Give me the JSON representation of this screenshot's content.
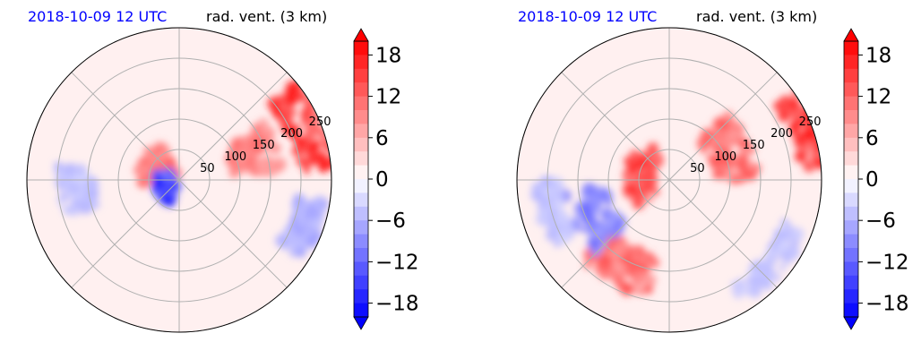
{
  "chart_data": [
    {
      "type": "heatmap",
      "projection": "polar",
      "title_left": "2018-10-09 12 UTC",
      "title_right": "rad. vent. (3 km)",
      "radial_ticks": [
        50,
        100,
        150,
        200,
        250
      ],
      "radial_max": 250,
      "angular_gridlines_deg": [
        0,
        45,
        90,
        135,
        180,
        225,
        270,
        315
      ],
      "colorbar": {
        "min": -20,
        "max": 20,
        "step": 2,
        "ticks": [
          -18,
          -12,
          -6,
          0,
          6,
          12,
          18
        ],
        "tick_labels": [
          "−18",
          "−12",
          "−6",
          "0",
          "6",
          "12",
          "18"
        ],
        "extend": "both",
        "colormap": "bwr",
        "low_color": "#0000ff",
        "zero_color": "#ffffff",
        "high_color": "#ff0000"
      },
      "features": [
        {
          "kind": "positive",
          "r": 40,
          "theta": 150,
          "spread_r": 30,
          "spread_theta": 40,
          "value": 14
        },
        {
          "kind": "positive",
          "r": 130,
          "theta": 20,
          "spread_r": 40,
          "spread_theta": 15,
          "value": 12
        },
        {
          "kind": "positive",
          "r": 230,
          "theta": 22,
          "spread_r": 35,
          "spread_theta": 18,
          "value": 20
        },
        {
          "kind": "negative",
          "r": 25,
          "theta": 200,
          "spread_r": 15,
          "spread_theta": 50,
          "value": -18
        },
        {
          "kind": "negative",
          "r": 170,
          "theta": 185,
          "spread_r": 30,
          "spread_theta": 12,
          "value": -6
        },
        {
          "kind": "negative",
          "r": 220,
          "theta": 340,
          "spread_r": 25,
          "spread_theta": 12,
          "value": -8
        }
      ]
    },
    {
      "type": "heatmap",
      "projection": "polar",
      "title_left": "2018-10-09 12 UTC",
      "title_right": "rad. vent. (3 km)",
      "radial_ticks": [
        50,
        100,
        150,
        200,
        250
      ],
      "radial_max": 250,
      "angular_gridlines_deg": [
        0,
        45,
        90,
        135,
        180,
        225,
        270,
        315
      ],
      "colorbar": {
        "min": -20,
        "max": 20,
        "step": 2,
        "ticks": [
          -18,
          -12,
          -6,
          0,
          6,
          12,
          18
        ],
        "tick_labels": [
          "−18",
          "−12",
          "−6",
          "0",
          "6",
          "12",
          "18"
        ],
        "extend": "both",
        "colormap": "bwr",
        "low_color": "#0000ff",
        "zero_color": "#ffffff",
        "high_color": "#ff0000"
      },
      "features": [
        {
          "kind": "positive",
          "r": 50,
          "theta": 170,
          "spread_r": 25,
          "spread_theta": 60,
          "value": 18
        },
        {
          "kind": "positive",
          "r": 110,
          "theta": 25,
          "spread_r": 35,
          "spread_theta": 25,
          "value": 14
        },
        {
          "kind": "positive",
          "r": 240,
          "theta": 20,
          "spread_r": 25,
          "spread_theta": 15,
          "value": 20
        },
        {
          "kind": "positive",
          "r": 160,
          "theta": 240,
          "spread_r": 35,
          "spread_theta": 20,
          "value": 14
        },
        {
          "kind": "negative",
          "r": 140,
          "theta": 205,
          "spread_r": 35,
          "spread_theta": 20,
          "value": -12
        },
        {
          "kind": "negative",
          "r": 200,
          "theta": 195,
          "spread_r": 20,
          "spread_theta": 15,
          "value": -6
        },
        {
          "kind": "negative",
          "r": 220,
          "theta": 320,
          "spread_r": 20,
          "spread_theta": 20,
          "value": -6
        }
      ]
    }
  ]
}
